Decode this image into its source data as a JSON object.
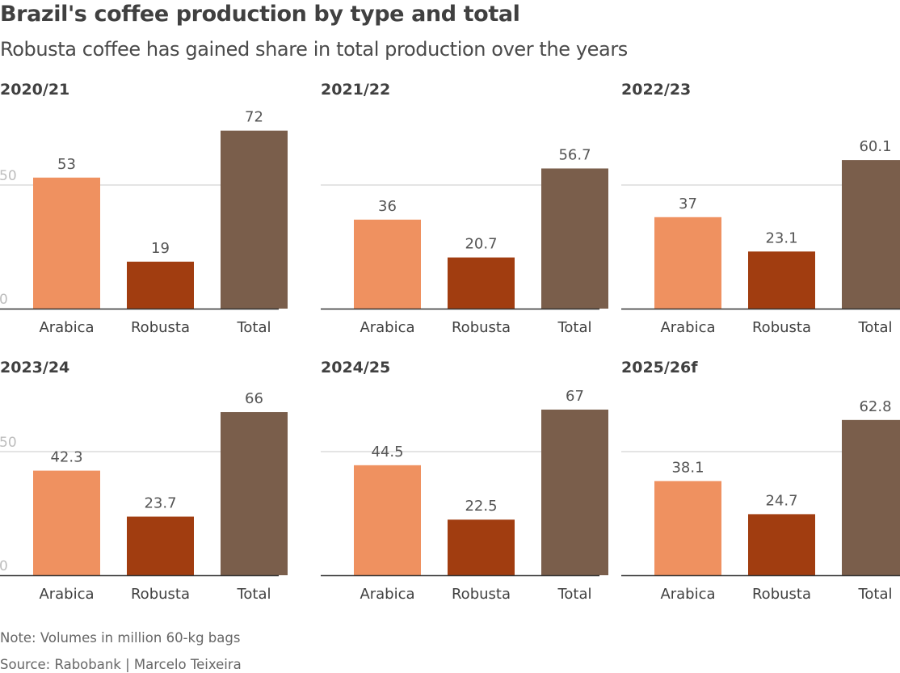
{
  "header": {
    "title": "Brazil's coffee production by type and total",
    "subtitle": "Robusta coffee has gained share in total production over the years"
  },
  "footer": {
    "note": "Note: Volumes in million 60-kg bags",
    "source": "Source: Rabobank | Marcelo Teixeira"
  },
  "colors": {
    "Arabica": "#ef9160",
    "Robusta": "#a13d10",
    "Total": "#7a5e4b"
  },
  "chart_data": [
    {
      "type": "bar",
      "title": "2020/21",
      "categories": [
        "Arabica",
        "Robusta",
        "Total"
      ],
      "values": [
        53,
        19,
        72
      ],
      "labels": [
        "53",
        "19",
        "72"
      ],
      "ylim": [
        0,
        72
      ],
      "yticks": [
        0,
        50
      ]
    },
    {
      "type": "bar",
      "title": "2021/22",
      "categories": [
        "Arabica",
        "Robusta",
        "Total"
      ],
      "values": [
        36,
        20.7,
        56.7
      ],
      "labels": [
        "36",
        "20.7",
        "56.7"
      ],
      "ylim": [
        0,
        72
      ],
      "yticks": [
        0,
        50
      ]
    },
    {
      "type": "bar",
      "title": "2022/23",
      "categories": [
        "Arabica",
        "Robusta",
        "Total"
      ],
      "values": [
        37,
        23.1,
        60.1
      ],
      "labels": [
        "37",
        "23.1",
        "60.1"
      ],
      "ylim": [
        0,
        72
      ],
      "yticks": [
        0,
        50
      ]
    },
    {
      "type": "bar",
      "title": "2023/24",
      "categories": [
        "Arabica",
        "Robusta",
        "Total"
      ],
      "values": [
        42.3,
        23.7,
        66
      ],
      "labels": [
        "42.3",
        "23.7",
        "66"
      ],
      "ylim": [
        0,
        72
      ],
      "yticks": [
        0,
        50
      ]
    },
    {
      "type": "bar",
      "title": "2024/25",
      "categories": [
        "Arabica",
        "Robusta",
        "Total"
      ],
      "values": [
        44.5,
        22.5,
        67
      ],
      "labels": [
        "44.5",
        "22.5",
        "67"
      ],
      "ylim": [
        0,
        72
      ],
      "yticks": [
        0,
        50
      ]
    },
    {
      "type": "bar",
      "title": "2025/26f",
      "categories": [
        "Arabica",
        "Robusta",
        "Total"
      ],
      "values": [
        38.1,
        24.7,
        62.8
      ],
      "labels": [
        "38.1",
        "24.7",
        "62.8"
      ],
      "ylim": [
        0,
        72
      ],
      "yticks": [
        0,
        50
      ]
    }
  ]
}
